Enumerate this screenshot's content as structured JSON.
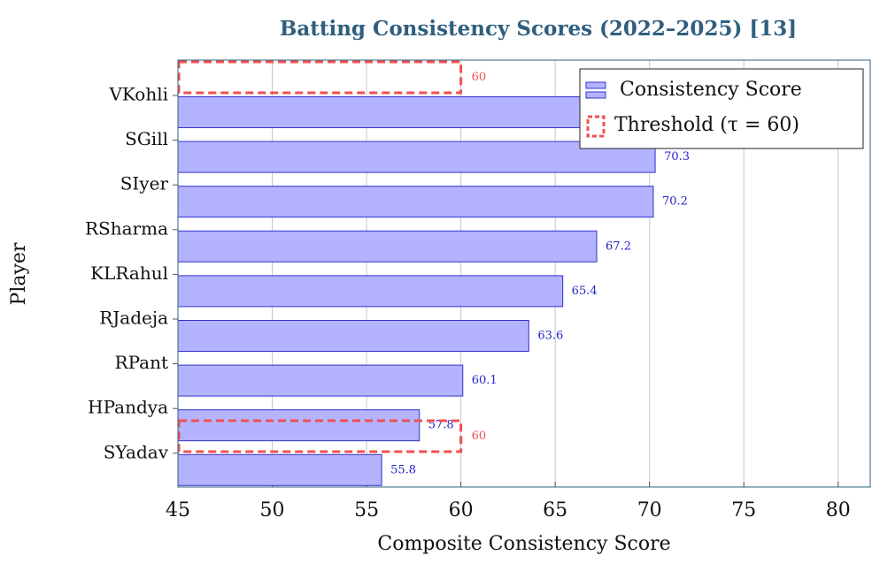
{
  "chart_data": {
    "type": "hbar",
    "title": "Batting Consistency Scores (2022–2025) [13]",
    "xlabel": "Composite Consistency Score",
    "ylabel": "Player",
    "categories": [
      "VKohli",
      "SGill",
      "SIyer",
      "RSharma",
      "KLRahul",
      "RJadeja",
      "RPant",
      "HPandya",
      "SYadav"
    ],
    "series": [
      {
        "name": "Consistency Score",
        "color": "#b3b3ff",
        "values": [
          70.5,
          70.3,
          70.2,
          67.2,
          65.4,
          63.6,
          60.1,
          57.8,
          55.8
        ]
      }
    ],
    "threshold": {
      "name": "Threshold (τ = 60)",
      "value": 60,
      "color": "#f05050"
    },
    "xlim": [
      45,
      81.7
    ],
    "xticks": [
      45,
      50,
      55,
      60,
      65,
      70,
      75,
      80
    ],
    "grid": true,
    "legend": "top-right"
  }
}
